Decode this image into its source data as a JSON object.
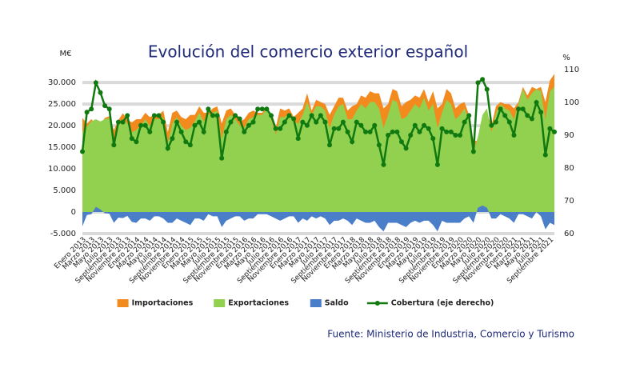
{
  "chart_data": {
    "type": "area",
    "title": "Evolución del comercio exterior español",
    "y_label": "M€",
    "y2_label": "%",
    "source": "Fuente: Ministerio de Industria, Comercio y Turismo",
    "grid": true,
    "legend": "bottom",
    "ylim": [
      -5000,
      33000
    ],
    "yticks": [
      {
        "value": -5000,
        "label": "-5.000"
      },
      0,
      {
        "value": 5000,
        "label": "5.000"
      },
      {
        "value": 10000,
        "label": "10.000"
      },
      {
        "value": 15000,
        "label": "15.000"
      },
      {
        "value": 20000,
        "label": "20.000"
      },
      {
        "value": 25000,
        "label": "25.000"
      },
      {
        "value": 30000,
        "label": "30.000"
      }
    ],
    "y2lim": [
      60,
      110
    ],
    "y2ticks": [
      60,
      70,
      80,
      90,
      100,
      110
    ],
    "categories": [
      "Enero 2013",
      null,
      "Marzo 2013",
      null,
      "Mayo 2013",
      null,
      "Julio 2013",
      null,
      "Septiembre 2013",
      null,
      "Noviembre 2013",
      null,
      "Enero 2014",
      null,
      "Marzo 2014",
      null,
      "Mayo 2014",
      null,
      "Julio 2014",
      null,
      "Septiembre 2014",
      null,
      "Noviembre 2014",
      null,
      "Enero 2015",
      null,
      "Marzo 2015",
      null,
      "Mayo 2015",
      null,
      "Julio 2015",
      null,
      "Septiembre 2015",
      null,
      "Noviembre 2015",
      null,
      "Enero 2016",
      null,
      "Marzo 2016",
      null,
      "Mayo 2016",
      null,
      "Julio 2016",
      null,
      "Septiembre 2016",
      null,
      "Noviembre 2016",
      null,
      "Enero 2017",
      null,
      "Marzo 2017",
      null,
      "Mayo 2017",
      null,
      "Julio 2017",
      null,
      "Septiembre 2017",
      null,
      "Noviembre 2017",
      null,
      "Enero 2018",
      null,
      "Marzo 2018",
      null,
      "Mayo 2018",
      null,
      "Julio 2018",
      null,
      "Septiembre 2018",
      null,
      "Noviembre 2018",
      null,
      "Enero 2019",
      null,
      "Marzo 2019",
      null,
      "Mayo 2019",
      null,
      "Julio 2019",
      null,
      "Septiembre 2019",
      null,
      "Noviembre 2019",
      null,
      "Enero 2020",
      null,
      "Marzo 2020",
      null,
      "Mayo 2020",
      null,
      "Julio 2020",
      null,
      "Septiembre 2020",
      null,
      "Noviembre 2020",
      null,
      "Enero 2021",
      null,
      "Marzo 2021",
      null,
      "Mayo 2021",
      null,
      "Julio 2021",
      null,
      "Septiembre 2021",
      null
    ],
    "series": [
      {
        "name": "Importaciones",
        "color": "#f28a1e",
        "values": [
          21800,
          20500,
          21500,
          20300,
          20400,
          21800,
          22200,
          19000,
          21300,
          22900,
          21400,
          20800,
          21500,
          21500,
          23000,
          22000,
          22500,
          22500,
          23500,
          18500,
          23000,
          23500,
          22000,
          21500,
          22500,
          22500,
          24500,
          23000,
          23000,
          24000,
          24500,
          20500,
          23500,
          24000,
          22500,
          21000,
          21500,
          23000,
          23500,
          23000,
          23000,
          24500,
          22500,
          19500,
          24000,
          23500,
          24000,
          22000,
          23000,
          24000,
          27500,
          23500,
          26000,
          25500,
          25000,
          22500,
          24500,
          26500,
          26500,
          23500,
          24500,
          25000,
          27000,
          26500,
          28000,
          27500,
          27500,
          24000,
          25000,
          28500,
          28000,
          24500,
          25500,
          26000,
          27000,
          26500,
          28500,
          25500,
          28000,
          24000,
          25000,
          28500,
          27500,
          24000,
          25000,
          25500,
          22500,
          16500,
          16500,
          21000,
          23000,
          20000,
          24500,
          25500,
          25000,
          25000,
          24000,
          25500,
          29000,
          27000,
          29000,
          28500,
          29000,
          25500,
          30500,
          32000
        ]
      },
      {
        "name": "Exportaciones",
        "color": "#92d050",
        "values": [
          18500,
          19800,
          21000,
          21500,
          21000,
          21500,
          21800,
          16500,
          20000,
          21500,
          20500,
          18500,
          19000,
          20000,
          21500,
          20000,
          21500,
          21500,
          22000,
          16000,
          20500,
          22000,
          20000,
          19000,
          19500,
          21000,
          23000,
          21000,
          22500,
          23000,
          23500,
          17000,
          21500,
          22500,
          21500,
          20000,
          19500,
          21500,
          22000,
          22500,
          22500,
          24000,
          21500,
          18000,
          22000,
          22000,
          23000,
          21000,
          20500,
          22500,
          25500,
          22500,
          24500,
          24500,
          23500,
          19500,
          22500,
          24500,
          25000,
          21500,
          21500,
          23500,
          25000,
          24000,
          25500,
          25500,
          24000,
          19500,
          22500,
          26000,
          25500,
          21500,
          22000,
          23500,
          25000,
          24000,
          26500,
          23500,
          25000,
          19500,
          23000,
          26000,
          25000,
          21500,
          22500,
          24000,
          21500,
          14000,
          17500,
          22500,
          24000,
          18500,
          23000,
          25000,
          24000,
          23500,
          21500,
          25000,
          28500,
          26000,
          27500,
          28500,
          28000,
          21500,
          28000,
          29000
        ]
      },
      {
        "name": "Saldo",
        "color": "#4a7ec9",
        "values": [
          -3300,
          -700,
          -500,
          1200,
          600,
          -300,
          -400,
          -2500,
          -1300,
          -1400,
          -900,
          -2300,
          -2500,
          -1500,
          -1500,
          -2000,
          -1000,
          -1000,
          -1500,
          -2500,
          -2500,
          -1500,
          -2000,
          -2500,
          -3000,
          -1500,
          -1500,
          -2000,
          -500,
          -1000,
          -1000,
          -3500,
          -2000,
          -1500,
          -1000,
          -1000,
          -2000,
          -1500,
          -1500,
          -500,
          -500,
          -500,
          -1000,
          -1500,
          -2000,
          -1500,
          -1000,
          -1000,
          -2500,
          -1500,
          -2000,
          -1000,
          -1500,
          -1000,
          -1500,
          -3000,
          -2000,
          -2000,
          -1500,
          -2000,
          -3000,
          -1500,
          -2000,
          -2500,
          -2500,
          -2000,
          -3500,
          -4500,
          -2500,
          -2500,
          -2500,
          -3000,
          -3500,
          -2500,
          -2000,
          -2500,
          -2000,
          -2000,
          -3000,
          -4500,
          -2000,
          -2500,
          -2500,
          -2500,
          -2500,
          -1500,
          -1000,
          -2500,
          1000,
          1500,
          1000,
          -1500,
          -1500,
          -500,
          -1000,
          -1500,
          -2500,
          -500,
          -500,
          -1000,
          -1500,
          0,
          -1000,
          -4000,
          -2500,
          -3000
        ]
      },
      {
        "name": "Cobertura (eje derecho)",
        "color": "#107a10",
        "type": "line",
        "axis": "y2",
        "values": [
          85,
          97,
          98,
          106,
          103,
          99,
          98,
          87,
          94,
          94,
          96,
          89,
          88,
          93,
          93,
          91,
          96,
          96,
          94,
          86,
          89,
          94,
          91,
          88,
          87,
          93,
          94,
          91,
          98,
          96,
          96,
          83,
          91,
          94,
          96,
          95,
          91,
          93,
          94,
          98,
          98,
          98,
          96,
          92,
          92,
          94,
          96,
          95,
          89,
          94,
          93,
          96,
          94,
          96,
          94,
          87,
          92,
          92,
          94,
          91,
          88,
          94,
          93,
          91,
          91,
          93,
          87,
          81,
          90,
          91,
          91,
          88,
          86,
          90,
          93,
          91,
          93,
          92,
          89,
          81,
          92,
          91,
          91,
          90,
          90,
          94,
          96,
          85,
          106,
          107,
          104,
          93,
          94,
          98,
          96,
          94,
          90,
          98,
          98,
          96,
          95,
          100,
          97,
          84,
          92,
          91
        ]
      }
    ]
  }
}
